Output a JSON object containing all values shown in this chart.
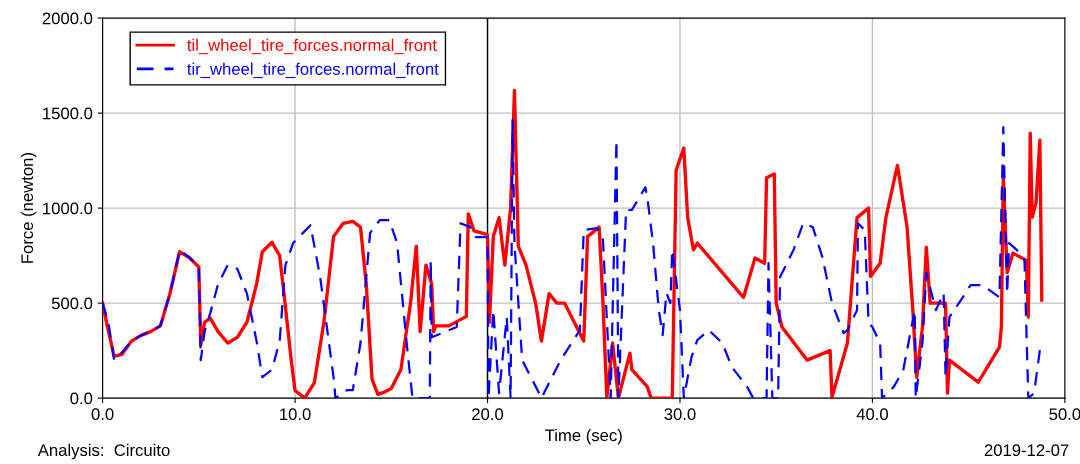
{
  "chart_data": {
    "type": "line",
    "xlabel": "Time (sec)",
    "ylabel": "Force (newton)",
    "xlim": [
      0,
      50
    ],
    "ylim": [
      0,
      2000
    ],
    "xticks": [
      {
        "value": 0,
        "label": "0.0"
      },
      {
        "value": 10,
        "label": "10.0"
      },
      {
        "value": 20,
        "label": "20.0"
      },
      {
        "value": 30,
        "label": "30.0"
      },
      {
        "value": 40,
        "label": "40.0"
      },
      {
        "value": 50,
        "label": "50.0"
      }
    ],
    "yticks": [
      {
        "value": 0,
        "label": "0.0"
      },
      {
        "value": 500,
        "label": "500.0"
      },
      {
        "value": 1000,
        "label": "1000.0"
      },
      {
        "value": 1500,
        "label": "1500.0"
      },
      {
        "value": 2000,
        "label": "2000.0"
      }
    ],
    "grid": true,
    "legend": "top left",
    "series": [
      {
        "name": "til_wheel_tire_forces.normal_front",
        "color": "#ff0000",
        "line_style": "solid",
        "x": [
          0,
          0.2,
          0.6,
          1,
          1.5,
          2,
          2.5,
          3,
          3.5,
          4,
          4.5,
          5,
          5.1,
          5.3,
          5.6,
          6,
          6.5,
          7,
          7.5,
          8,
          8.3,
          8.8,
          9.2,
          9.5,
          9.8,
          10,
          10.5,
          11,
          11.5,
          12,
          12.5,
          13,
          13.4,
          13.7,
          14,
          14.3,
          14.6,
          15,
          15.5,
          16,
          16.3,
          16.5,
          16.8,
          17.1,
          17.2,
          17.3,
          18,
          18.9,
          19,
          19.3,
          20,
          20.1,
          20.3,
          20.6,
          20.9,
          21.2,
          21.4,
          21.6,
          22,
          22.5,
          22.8,
          23.2,
          23.6,
          24,
          24.5,
          25,
          25.2,
          25.8,
          26,
          26.2,
          26.5,
          26.8,
          27.4,
          27.5,
          28.3,
          28.5,
          29.6,
          29.8,
          30.2,
          30.4,
          30.7,
          30.9,
          33.3,
          33.9,
          34.4,
          34.5,
          34.9,
          35,
          35.3,
          36.6,
          37.8,
          37.9,
          38.7,
          39.2,
          39.8,
          39.9,
          40.4,
          40.7,
          41.3,
          41.8,
          42.1,
          42.3,
          42.6,
          42.8,
          43,
          43.8,
          43.9,
          44,
          45.5,
          46.6,
          46.7,
          46.8,
          47,
          47.3,
          48,
          48.1,
          48.2,
          48.3,
          48.5,
          48.7,
          48.8
        ],
        "values": [
          500,
          400,
          220,
          230,
          300,
          330,
          350,
          380,
          550,
          770,
          740,
          690,
          280,
          400,
          420,
          350,
          290,
          320,
          400,
          600,
          770,
          820,
          750,
          480,
          200,
          40,
          0,
          80,
          400,
          850,
          920,
          930,
          900,
          600,
          100,
          20,
          30,
          50,
          150,
          500,
          800,
          350,
          700,
          600,
          350,
          380,
          380,
          430,
          970,
          880,
          860,
          400,
          850,
          950,
          700,
          1000,
          1620,
          800,
          700,
          500,
          300,
          550,
          500,
          500,
          400,
          300,
          850,
          900,
          500,
          0,
          290,
          0,
          237,
          150,
          60,
          0,
          0,
          1200,
          1316,
          950,
          780,
          816,
          530,
          737,
          710,
          1160,
          1180,
          500,
          374,
          200,
          250,
          5,
          290,
          950,
          1000,
          640,
          710,
          950,
          1225,
          900,
          460,
          110,
          375,
          795,
          500,
          500,
          26,
          200,
          84,
          268,
          374,
          1160,
          660,
          763,
          725,
          426,
          1395,
          952,
          1026,
          1358,
          516
        ]
      },
      {
        "name": "tir_wheel_tire_forces.normal_front",
        "color": "#0000ff",
        "line_style": "dashed",
        "x": [
          0,
          0.3,
          0.6,
          1,
          1.5,
          2,
          2.5,
          3,
          3.5,
          4,
          4.5,
          5,
          5.1,
          5.3,
          5.6,
          6,
          6.5,
          7,
          7.5,
          8,
          8.3,
          8.8,
          9.2,
          9.5,
          9.9,
          10.8,
          11.3,
          12,
          12.1,
          12.7,
          13,
          13.4,
          13.9,
          14.4,
          14.9,
          15.3,
          15.8,
          16.1,
          17,
          17.05,
          17.1,
          18.4,
          18.6,
          19.1,
          19.4,
          20,
          20.05,
          20.3,
          20.6,
          21,
          21.2,
          21.3,
          21.4,
          21.8,
          22.6,
          22.8,
          23.8,
          24.8,
          25,
          25.7,
          26,
          26.4,
          26.7,
          26.8,
          27.2,
          27.5,
          28.2,
          28.3,
          28.6,
          28.9,
          29.1,
          29.3,
          29.5,
          29.6,
          30,
          30.2,
          30.6,
          30.9,
          31.5,
          32.2,
          32.7,
          33.5,
          33.8,
          34.5,
          34.6,
          34.8,
          35.1,
          35.2,
          35.9,
          36.4,
          36.9,
          37.4,
          37.9,
          38.5,
          38.7,
          39.2,
          39.25,
          39.6,
          39.8,
          40,
          40.4,
          40.5,
          41.1,
          41.6,
          42.2,
          42.25,
          42.6,
          42.8,
          43.3,
          43.7,
          43.8,
          44,
          44.7,
          45.1,
          45.7,
          46.6,
          46.8,
          47,
          47.1,
          47.5,
          47.9,
          48.1,
          48.4,
          48.7
        ],
        "values": [
          500,
          400,
          200,
          240,
          300,
          330,
          350,
          380,
          550,
          780,
          740,
          690,
          200,
          350,
          450,
          600,
          700,
          680,
          550,
          300,
          110,
          150,
          300,
          700,
          816,
          910,
          640,
          110,
          0,
          42,
          42,
          290,
          870,
          937,
          937,
          816,
          290,
          0,
          0,
          726,
          320,
          374,
          920,
          900,
          847,
          847,
          0,
          463,
          26,
          426,
          0,
          1463,
          816,
          200,
          42,
          0,
          200,
          358,
          884,
          895,
          832,
          0,
          1358,
          0,
          990,
          990,
          1110,
          1058,
          816,
          463,
          332,
          553,
          500,
          780,
          463,
          0,
          216,
          305,
          358,
          290,
          163,
          58,
          0,
          0,
          710,
          0,
          0,
          637,
          780,
          920,
          900,
          742,
          500,
          342,
          358,
          463,
          920,
          884,
          395,
          374,
          290,
          0,
          58,
          147,
          463,
          0,
          290,
          658,
          463,
          553,
          110,
          426,
          531,
          595,
          595,
          531,
          1426,
          550,
          816,
          780,
          726,
          0,
          26,
          253
        ]
      }
    ],
    "ref_lines": [
      {
        "axis": "x",
        "value": 20,
        "color": "#000000"
      }
    ],
    "annotations": [
      "Analysis:  Circuito",
      "2019-12-07"
    ]
  }
}
